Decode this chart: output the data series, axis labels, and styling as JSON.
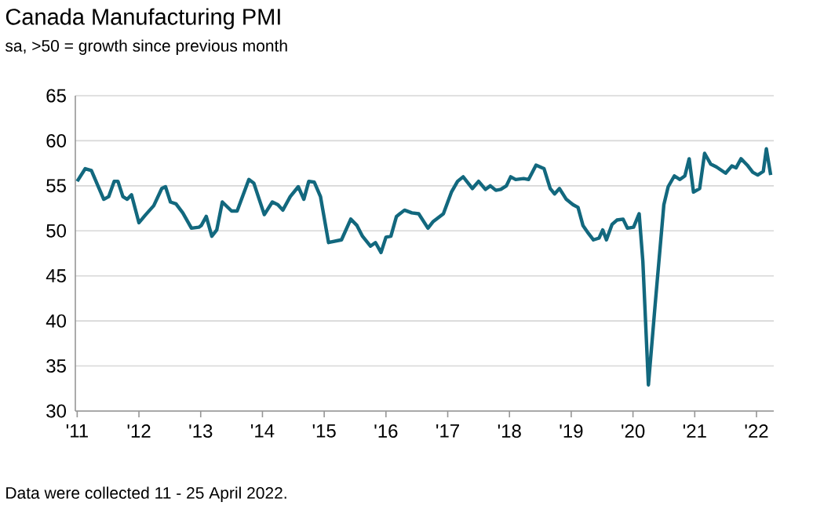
{
  "chart_data": {
    "type": "line",
    "title": "Canada Manufacturing PMI",
    "subtitle": "sa, >50 = growth since previous month",
    "annotations": [
      "Data were collected 11 - 25 April 2022."
    ],
    "x": [
      2011.0,
      2011.13,
      2011.23,
      2011.43,
      2011.51,
      2011.6,
      2011.66,
      2011.74,
      2011.81,
      2011.88,
      2012.0,
      2012.11,
      2012.24,
      2012.37,
      2012.43,
      2012.51,
      2012.6,
      2012.71,
      2012.85,
      2012.97,
      2013.01,
      2013.09,
      2013.18,
      2013.26,
      2013.35,
      2013.5,
      2013.59,
      2013.78,
      2013.86,
      2014.03,
      2014.16,
      2014.25,
      2014.33,
      2014.45,
      2014.58,
      2014.67,
      2014.75,
      2014.84,
      2014.94,
      2015.07,
      2015.28,
      2015.43,
      2015.53,
      2015.62,
      2015.75,
      2015.83,
      2015.92,
      2016.0,
      2016.08,
      2016.17,
      2016.3,
      2016.42,
      2016.53,
      2016.68,
      2016.76,
      2016.93,
      2017.06,
      2017.16,
      2017.25,
      2017.4,
      2017.5,
      2017.61,
      2017.69,
      2017.78,
      2017.86,
      2017.95,
      2018.02,
      2018.1,
      2018.23,
      2018.31,
      2018.43,
      2018.56,
      2018.66,
      2018.73,
      2018.81,
      2018.92,
      2019.03,
      2019.11,
      2019.19,
      2019.28,
      2019.36,
      2019.45,
      2019.51,
      2019.57,
      2019.66,
      2019.74,
      2019.84,
      2019.91,
      2020.01,
      2020.1,
      2020.16,
      2020.25,
      2020.36,
      2020.5,
      2020.57,
      2020.67,
      2020.76,
      2020.84,
      2020.91,
      2020.98,
      2021.08,
      2021.16,
      2021.26,
      2021.35,
      2021.5,
      2021.6,
      2021.67,
      2021.75,
      2021.85,
      2021.94,
      2022.02,
      2022.11,
      2022.16,
      2022.23
    ],
    "series": [
      {
        "color": "#12687e",
        "values": [
          55.5,
          56.9,
          56.7,
          53.5,
          53.8,
          55.5,
          55.5,
          53.8,
          53.5,
          54.0,
          50.9,
          51.8,
          52.8,
          54.7,
          54.9,
          53.2,
          53.0,
          52.0,
          50.3,
          50.4,
          50.6,
          51.6,
          49.4,
          50.1,
          53.2,
          52.2,
          52.2,
          55.7,
          55.3,
          51.8,
          53.2,
          52.9,
          52.3,
          53.8,
          54.9,
          53.5,
          55.5,
          55.4,
          53.8,
          48.7,
          49.0,
          51.3,
          50.6,
          49.4,
          48.3,
          48.7,
          47.6,
          49.3,
          49.4,
          51.6,
          52.3,
          52.0,
          51.9,
          50.3,
          51.0,
          51.9,
          54.3,
          55.5,
          56.0,
          54.7,
          55.5,
          54.6,
          55.0,
          54.5,
          54.6,
          55.0,
          56.0,
          55.7,
          55.8,
          55.7,
          57.3,
          56.9,
          54.7,
          54.1,
          54.7,
          53.5,
          52.9,
          52.6,
          50.6,
          49.7,
          49.0,
          49.2,
          50.1,
          49.0,
          50.7,
          51.2,
          51.3,
          50.3,
          50.4,
          51.9,
          46.6,
          32.9,
          41.9,
          52.9,
          54.9,
          56.1,
          55.7,
          56.1,
          58.0,
          54.3,
          54.7,
          58.6,
          57.4,
          57.1,
          56.4,
          57.2,
          57.0,
          58.0,
          57.3,
          56.5,
          56.2,
          56.6,
          59.1,
          56.2
        ]
      }
    ],
    "xlim": [
      2010.97,
      2022.28
    ],
    "xticks": [
      {
        "value": 2011,
        "label": "'11"
      },
      {
        "value": 2012,
        "label": "'12"
      },
      {
        "value": 2013,
        "label": "'13"
      },
      {
        "value": 2014,
        "label": "'14"
      },
      {
        "value": 2015,
        "label": "'15"
      },
      {
        "value": 2016,
        "label": "'16"
      },
      {
        "value": 2017,
        "label": "'17"
      },
      {
        "value": 2018,
        "label": "'18"
      },
      {
        "value": 2019,
        "label": "'19"
      },
      {
        "value": 2020,
        "label": "'20"
      },
      {
        "value": 2021,
        "label": "'21"
      },
      {
        "value": 2022,
        "label": "'22"
      }
    ],
    "ylim": [
      30,
      65
    ],
    "yticks": [
      30,
      35,
      40,
      45,
      50,
      55,
      60,
      65
    ],
    "grid": "y",
    "marker": "none",
    "line_style": "solid"
  }
}
